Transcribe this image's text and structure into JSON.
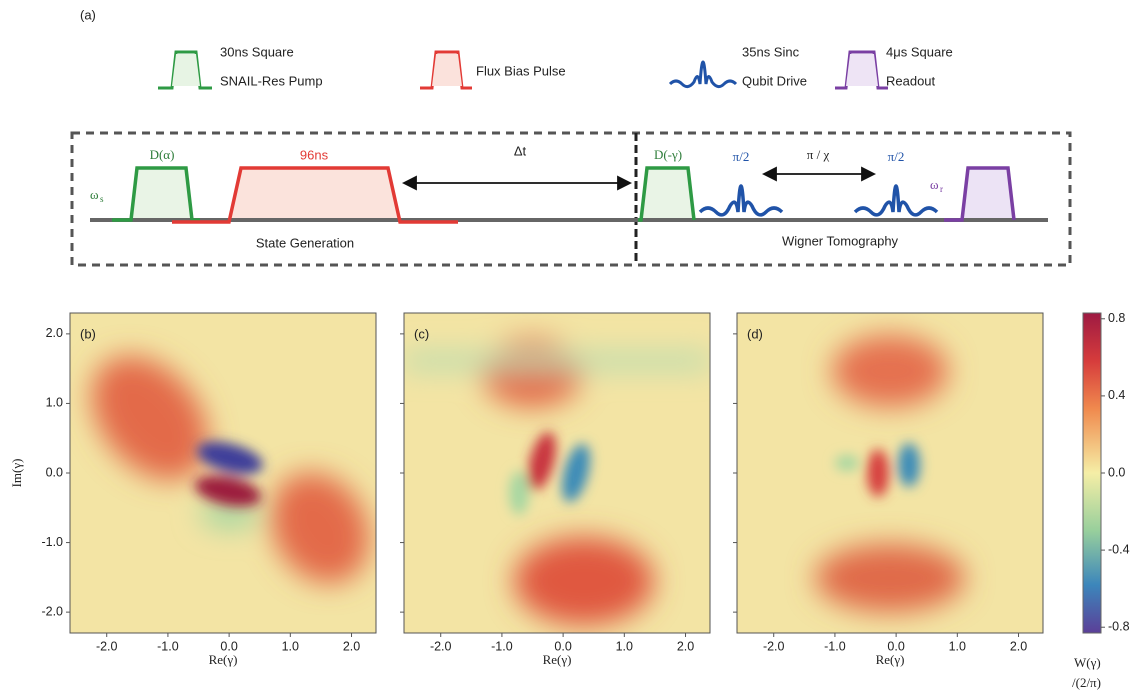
{
  "figure": {
    "panel_a": {
      "label": "(a)",
      "legend": [
        "30ns Square",
        "SNAIL-Res Pump",
        "Flux  Bias Pulse",
        "35ns Sinc",
        "Qubit Drive",
        "4μs Square",
        "Readout"
      ],
      "sequence": {
        "d_alpha": "D(α)",
        "flux_duration": "96ns",
        "delay": "Δt",
        "omega_s": "ω",
        "omega_s_sub": "s",
        "state_generation": "State Generation",
        "d_gamma": "D(-γ)",
        "pi_half_1": "π/2",
        "pi_chi": "π / χ",
        "pi_half_2": "π/2",
        "omega_r": "ω",
        "omega_r_sub": "r",
        "tomography": "Wigner Tomography"
      }
    },
    "panels": [
      {
        "label": "(b)",
        "xlabel": "Re(γ)"
      },
      {
        "label": "(c)",
        "xlabel": "Re(γ)"
      },
      {
        "label": "(d)",
        "xlabel": "Re(γ)"
      }
    ],
    "ylabel": "Im(γ)",
    "xlim": [
      -2.6,
      2.4
    ],
    "ylim": [
      -2.3,
      2.3
    ],
    "xticks": [
      {
        "value": -2,
        "label": "-2.0"
      },
      {
        "value": -1,
        "label": "-1.0"
      },
      {
        "value": 0,
        "label": "0.0"
      },
      {
        "value": 1,
        "label": "1.0"
      },
      {
        "value": 2,
        "label": "2.0"
      }
    ],
    "yticks": [
      {
        "value": -2,
        "label": "-2.0"
      },
      {
        "value": -1,
        "label": "-1.0"
      },
      {
        "value": 0,
        "label": "0.0"
      },
      {
        "value": 1,
        "label": "1.0"
      },
      {
        "value": 2,
        "label": "2.0"
      }
    ],
    "colorbar": {
      "clim": [
        -0.83,
        0.83
      ],
      "ticks": [
        0.8,
        0.4,
        {
          "value": 0,
          "label": "0.0"
        },
        -0.4,
        -0.8
      ],
      "label": "W(γ)",
      "label2": "/(2/π)"
    }
  }
}
